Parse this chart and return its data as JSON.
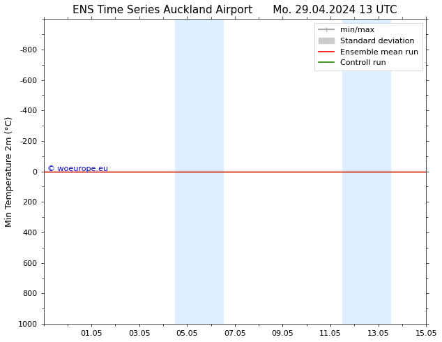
{
  "title": "ENS Time Series Auckland Airport      Mo. 29.04.2024 13 UTC",
  "ylabel": "Min Temperature 2m (°C)",
  "xlim_dates": [
    "2024-04-29",
    "2024-05-15"
  ],
  "ylim": [
    -1000,
    1000
  ],
  "yticks": [
    -800,
    -600,
    -400,
    -200,
    0,
    200,
    400,
    600,
    800,
    1000
  ],
  "xtick_labels": [
    "01.05",
    "03.05",
    "05.05",
    "07.05",
    "09.05",
    "11.05",
    "13.05",
    "15.05"
  ],
  "xtick_positions": [
    2,
    4,
    6,
    8,
    10,
    12,
    14,
    16
  ],
  "shaded_bands": [
    {
      "x_start": 5.5,
      "x_end": 6.5
    },
    {
      "x_start": 6.5,
      "x_end": 7.5
    },
    {
      "x_start": 12.5,
      "x_end": 13.5
    },
    {
      "x_start": 13.5,
      "x_end": 14.5
    }
  ],
  "band_color": "#ddeeff",
  "control_run_y": 0,
  "control_run_color": "#228800",
  "ensemble_mean_color": "#ff0000",
  "minmax_color": "#aaaaaa",
  "std_color": "#cccccc",
  "watermark_text": "© woeurope.eu",
  "watermark_color": "#0000cc",
  "background_color": "#ffffff",
  "title_fontsize": 11,
  "axis_fontsize": 9,
  "tick_fontsize": 8,
  "legend_fontsize": 8
}
